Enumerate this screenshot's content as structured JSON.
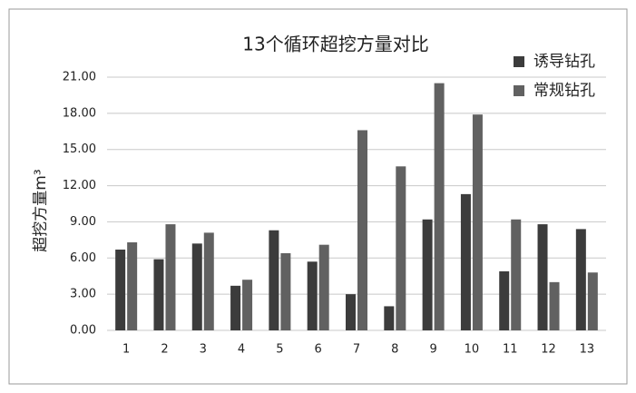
{
  "chart_data": {
    "type": "bar",
    "title": "13个循环超挖方量对比",
    "ylabel": "超挖方量m³",
    "categories": [
      "1",
      "2",
      "3",
      "4",
      "5",
      "6",
      "7",
      "8",
      "9",
      "10",
      "11",
      "12",
      "13"
    ],
    "series": [
      {
        "name": "诱导钻孔",
        "color": "#3c3c3c",
        "values": [
          6.7,
          5.9,
          7.2,
          3.7,
          8.3,
          5.7,
          3.0,
          2.0,
          9.2,
          11.3,
          4.9,
          8.8,
          8.4
        ]
      },
      {
        "name": "常规钻孔",
        "color": "#616161",
        "values": [
          7.3,
          8.8,
          8.1,
          4.2,
          6.4,
          7.1,
          16.6,
          13.6,
          20.5,
          17.9,
          9.2,
          4.0,
          4.8
        ]
      }
    ],
    "ylim": [
      0,
      21
    ],
    "yticks": [
      {
        "value": 0,
        "label": "0.00"
      },
      {
        "value": 3,
        "label": "3.00"
      },
      {
        "value": 6,
        "label": "6.00"
      },
      {
        "value": 9,
        "label": "9.00"
      },
      {
        "value": 12,
        "label": "12.00"
      },
      {
        "value": 15,
        "label": "15.00"
      },
      {
        "value": 18,
        "label": "18.00"
      },
      {
        "value": 21,
        "label": "21.00"
      }
    ],
    "grid": true,
    "legend": "top-right"
  }
}
